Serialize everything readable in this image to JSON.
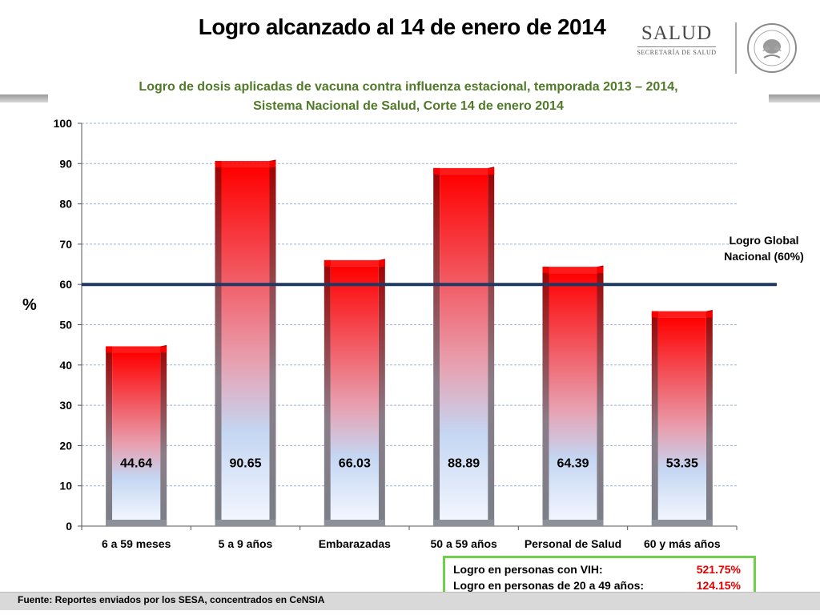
{
  "header": {
    "title": "Logro alcanzado al 14 de enero de 2014",
    "logo_word": "SALUD",
    "logo_sub": "SECRETARÍA DE SALUD"
  },
  "chart_data": {
    "type": "bar",
    "title": "Logro de dosis aplicadas de vacuna contra influenza estacional, temporada 2013 – 2014,",
    "subtitle": "Sistema Nacional de Salud, Corte 14 de enero 2014",
    "categories": [
      "6 a 59 meses",
      "5 a 9 años",
      "Embarazadas",
      "50 a 59 años",
      "Personal de Salud",
      "60 y más años"
    ],
    "values": [
      44.64,
      90.65,
      66.03,
      88.89,
      64.39,
      53.35
    ],
    "value_labels": [
      "44.64",
      "90.65",
      "66.03",
      "88.89",
      "64.39",
      "53.35"
    ],
    "ylabel": "%",
    "ylim": [
      0,
      100
    ],
    "yticks": [
      0,
      10,
      20,
      30,
      40,
      50,
      60,
      70,
      80,
      90,
      100
    ],
    "grid": true,
    "reference_line": {
      "value": 60,
      "label_line1": "Logro Global",
      "label_line2": "Nacional (60%)"
    },
    "colors": {
      "bar_top": "#ff0000",
      "bar_bottom": "#f2f6ff",
      "bar_mid": "#c4d6f2",
      "reference": "#1f3864",
      "grid": "#9db3d6"
    }
  },
  "info_box": {
    "rows": [
      {
        "label": "Logro en personas con VIH:",
        "value": "521.75%"
      },
      {
        "label": "Logro en personas de 20 a 49 años:",
        "value": "124.15%"
      }
    ]
  },
  "footer": {
    "source": "Fuente: Reportes enviados por los SESA, concentrados en CeNSIA"
  }
}
